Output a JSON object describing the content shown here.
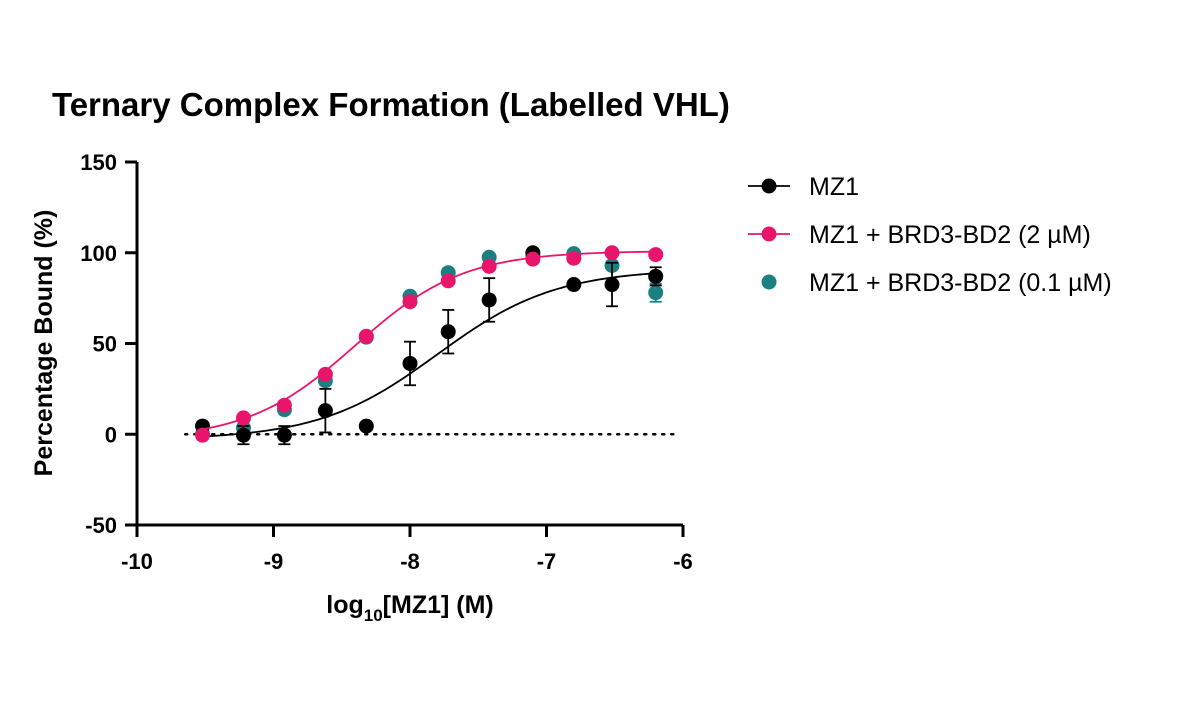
{
  "chart_data": {
    "type": "scatter",
    "title": "Ternary Complex Formation (Labelled VHL)",
    "xlabel": {
      "prefix": "log",
      "subscript": "10",
      "suffix": "[MZ1] (M)"
    },
    "ylabel": "Percentage Bound (%)",
    "xlim": [
      -10,
      -6
    ],
    "ylim": [
      -50,
      150
    ],
    "xticks": [
      -10,
      -9,
      -8,
      -7,
      -6
    ],
    "xtick_labels": [
      "-10",
      "-9",
      "-8",
      "-7",
      "-6"
    ],
    "yticks": [
      -50,
      0,
      50,
      100,
      150
    ],
    "ytick_labels": [
      "-50",
      "0",
      "50",
      "100",
      "150"
    ],
    "grid": false,
    "baseline": {
      "y": 0,
      "style": "dotted",
      "x_range": [
        -9.5,
        -6.05
      ]
    },
    "legend_position": "right",
    "series": [
      {
        "name": "MZ1",
        "color": "#000000",
        "points": [
          {
            "x": -9.52,
            "y": 4.5
          },
          {
            "x": -9.22,
            "y": -0.5,
            "err": 5
          },
          {
            "x": -8.92,
            "y": -0.5,
            "err": 5
          },
          {
            "x": -8.62,
            "y": 13,
            "err": 12
          },
          {
            "x": -8.32,
            "y": 4.5
          },
          {
            "x": -8.0,
            "y": 39,
            "err": 12
          },
          {
            "x": -7.72,
            "y": 56.5,
            "err": 12
          },
          {
            "x": -7.42,
            "y": 74,
            "err": 12
          },
          {
            "x": -7.1,
            "y": 100
          },
          {
            "x": -6.8,
            "y": 82.5
          },
          {
            "x": -6.52,
            "y": 82.5,
            "err": 12
          },
          {
            "x": -6.2,
            "y": 87,
            "err": 5
          }
        ],
        "fit": {
          "bottom": -3,
          "top": 91,
          "log_ec50": -7.8,
          "hill": 1.0,
          "x_range": [
            -9.52,
            -6.2
          ]
        }
      },
      {
        "name": "MZ1 + BRD3-BD2 (2 µM)",
        "color": "#e8156b",
        "points": [
          {
            "x": -9.52,
            "y": -0.5
          },
          {
            "x": -9.22,
            "y": 9
          },
          {
            "x": -8.92,
            "y": 16
          },
          {
            "x": -8.62,
            "y": 33
          },
          {
            "x": -8.32,
            "y": 54
          },
          {
            "x": -8.0,
            "y": 73
          },
          {
            "x": -7.72,
            "y": 84.5
          },
          {
            "x": -7.42,
            "y": 92.5
          },
          {
            "x": -7.1,
            "y": 96.5
          },
          {
            "x": -6.8,
            "y": 97
          },
          {
            "x": -6.52,
            "y": 100
          },
          {
            "x": -6.2,
            "y": 99
          }
        ],
        "fit": {
          "bottom": -3,
          "top": 101,
          "log_ec50": -8.4,
          "hill": 1.1,
          "x_range": [
            -9.52,
            -6.2
          ]
        }
      },
      {
        "name": "MZ1 + BRD3-BD2 (0.1 µM)",
        "color": "#1a8082",
        "points": [
          {
            "x": -9.52,
            "y": 0
          },
          {
            "x": -9.22,
            "y": 3.5
          },
          {
            "x": -8.92,
            "y": 13.5
          },
          {
            "x": -8.62,
            "y": 29.5
          },
          {
            "x": -8.32,
            "y": 53.5
          },
          {
            "x": -8.0,
            "y": 76
          },
          {
            "x": -7.72,
            "y": 89
          },
          {
            "x": -7.42,
            "y": 97.5
          },
          {
            "x": -7.1,
            "y": 98.5
          },
          {
            "x": -6.8,
            "y": 99.5
          },
          {
            "x": -6.52,
            "y": 93
          },
          {
            "x": -6.2,
            "y": 78,
            "err": 5
          }
        ]
      }
    ]
  }
}
